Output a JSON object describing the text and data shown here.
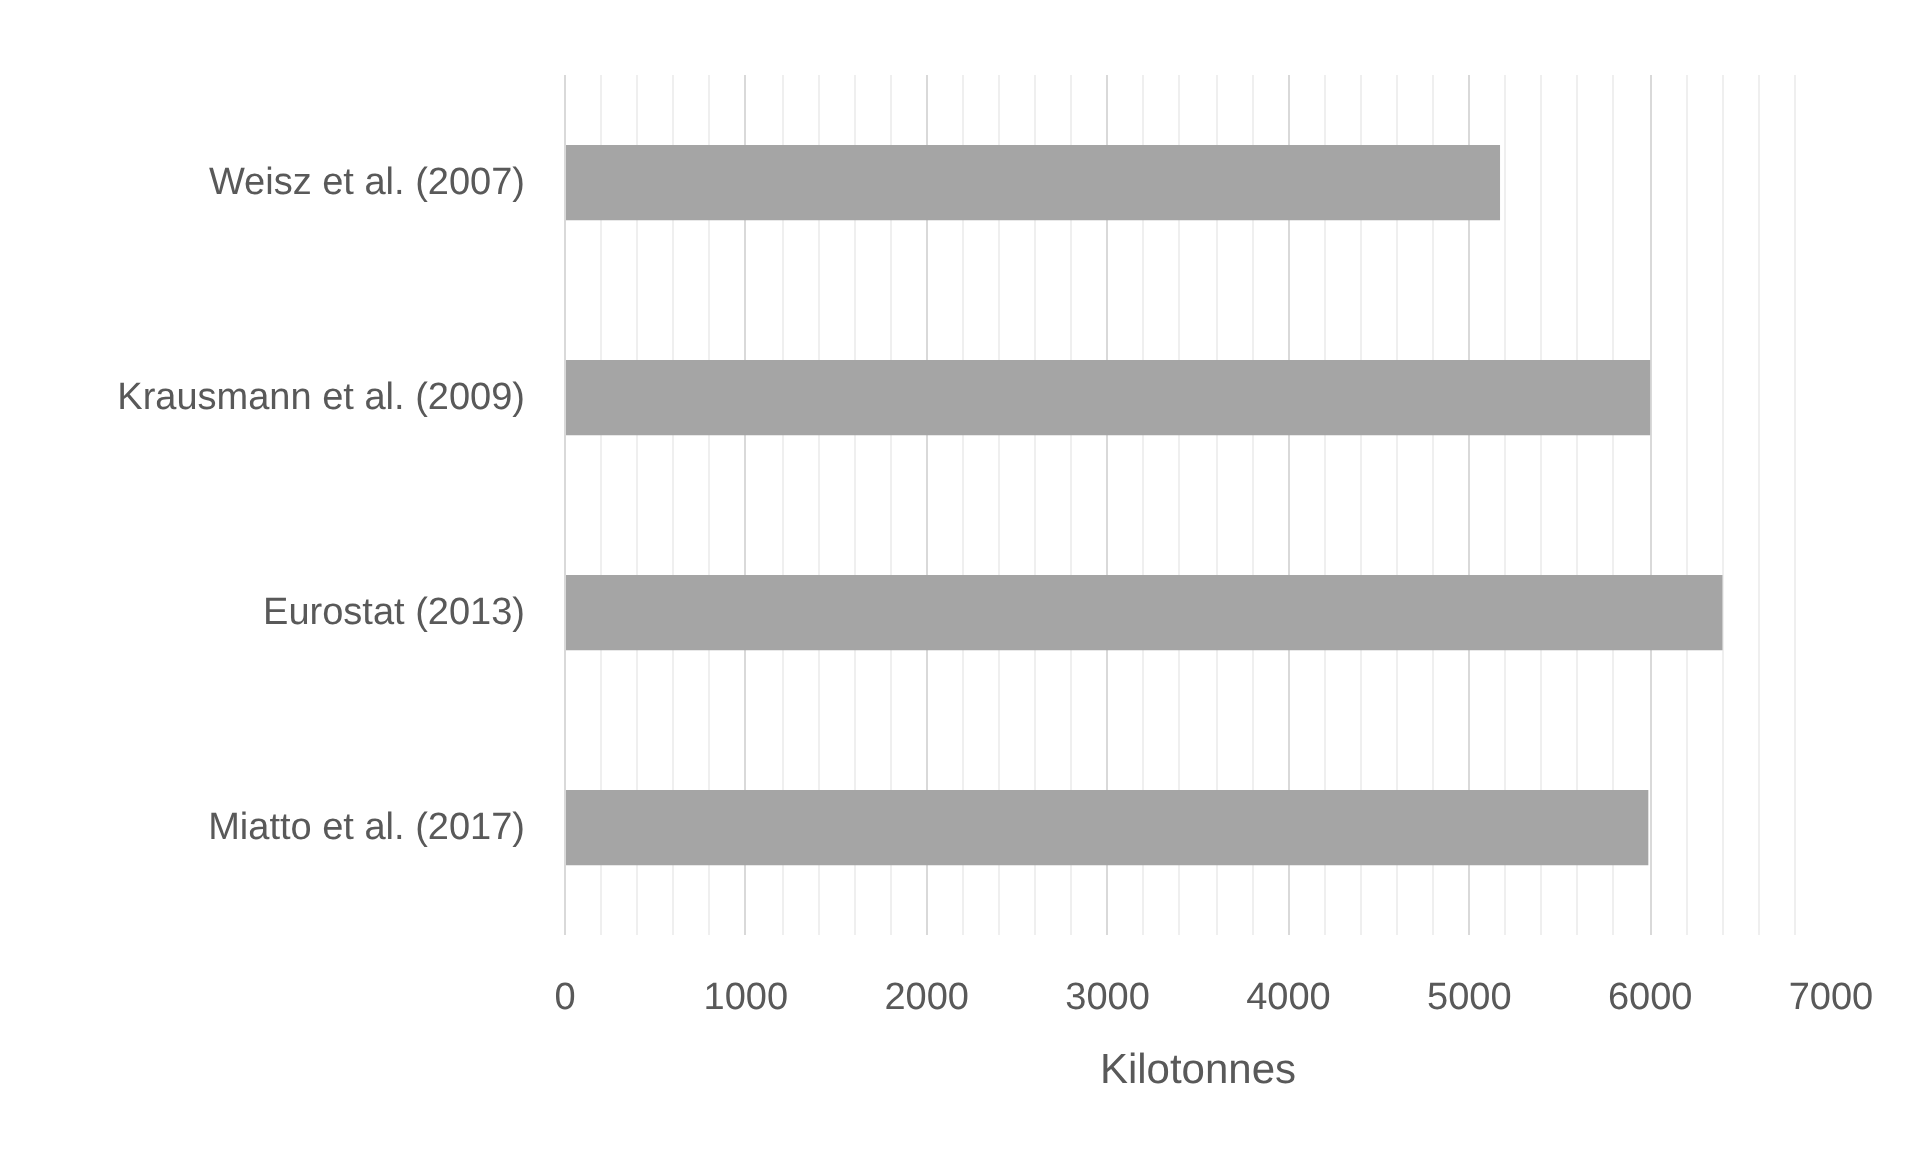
{
  "chart_data": {
    "type": "bar",
    "orientation": "horizontal",
    "categories": [
      "Weisz et al. (2007)",
      "Krausmann et al. (2009)",
      "Eurostat (2013)",
      "Miatto et al. (2017)"
    ],
    "values": [
      5170,
      6000,
      6400,
      5990
    ],
    "color": "#a5a5a5",
    "xlabel": "Kilotonnes",
    "xlim": [
      0,
      7000
    ],
    "xticks": [
      0,
      1000,
      2000,
      3000,
      4000,
      5000,
      6000,
      7000
    ],
    "grid": "x"
  }
}
